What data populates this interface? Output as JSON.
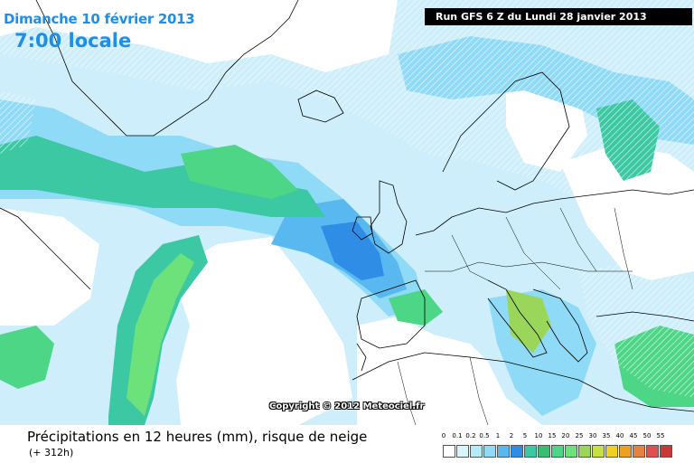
{
  "header": {
    "date_line": "Dimanche 10 février 2013",
    "time_line": "7:00 locale",
    "run_info": "Run GFS 6 Z du Lundi 28 janvier 2013"
  },
  "map": {
    "copyright": "Copyright © 2012 Meteociel.fr",
    "colors": {
      "ocean_base": "#ffffff",
      "level_light": "#cdeefa",
      "level_sky": "#8fdaf6",
      "level_blue": "#5ab8f0",
      "level_deep": "#2f8de6",
      "level_teal": "#3cc8a2",
      "level_green": "#4dd686",
      "level_bright_green": "#6ee27a",
      "level_olive": "#9ad65a",
      "coastline": "#000000",
      "hatch": "#ffffff"
    },
    "icons": [
      "coastline-map",
      "snow-risk-hatching"
    ]
  },
  "footer": {
    "caption": "Précipitations en 12 heures (mm), risque de neige",
    "subcaption": "(+ 312h)"
  },
  "legend": {
    "labels": [
      "0",
      "0.1",
      "0.2",
      "0.5",
      "1",
      "2",
      "5",
      "10",
      "15",
      "20",
      "25",
      "30",
      "35",
      "40",
      "45",
      "50",
      "55"
    ],
    "colors": [
      "#ffffff",
      "#d8f4fc",
      "#b4eaf9",
      "#8fdaf6",
      "#5ab8f0",
      "#2f8de6",
      "#3cc8a2",
      "#38c070",
      "#4dd686",
      "#6ee27a",
      "#9ad65a",
      "#c8e040",
      "#f0d020",
      "#f0a020",
      "#e88040",
      "#e05050",
      "#c83838"
    ]
  }
}
